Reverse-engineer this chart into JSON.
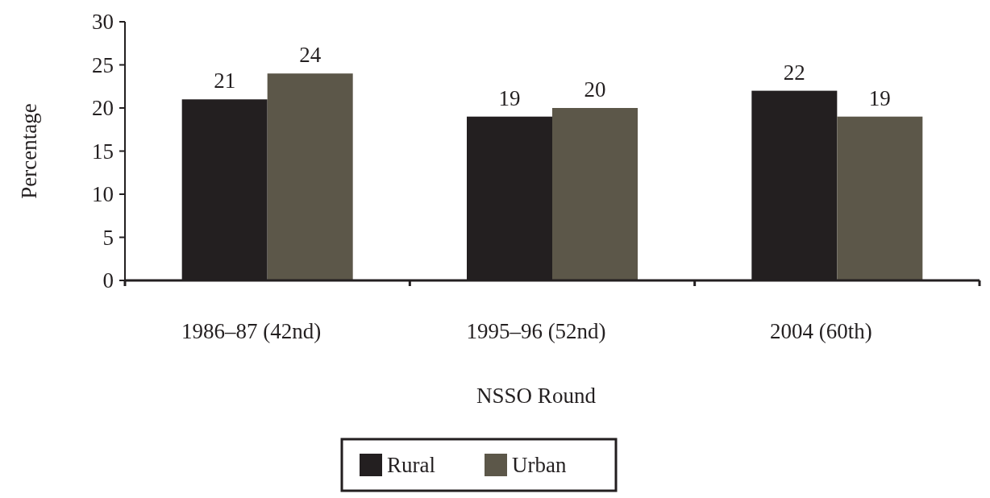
{
  "chart_data": {
    "type": "bar",
    "xlabel": "NSSO Round",
    "ylabel": "Percentage",
    "categories": [
      "1986–87 (42nd)",
      "1995–96 (52nd)",
      "2004 (60th)"
    ],
    "series": [
      {
        "name": "Rural",
        "color": "#231f20",
        "values": [
          21,
          19,
          22
        ]
      },
      {
        "name": "Urban",
        "color": "#5c5749",
        "values": [
          24,
          20,
          19
        ]
      }
    ],
    "ylim": [
      0,
      30
    ],
    "yticks": [
      0,
      5,
      10,
      15,
      20,
      25,
      30
    ],
    "data_labels": true,
    "legend": "bottom",
    "grid": false
  }
}
